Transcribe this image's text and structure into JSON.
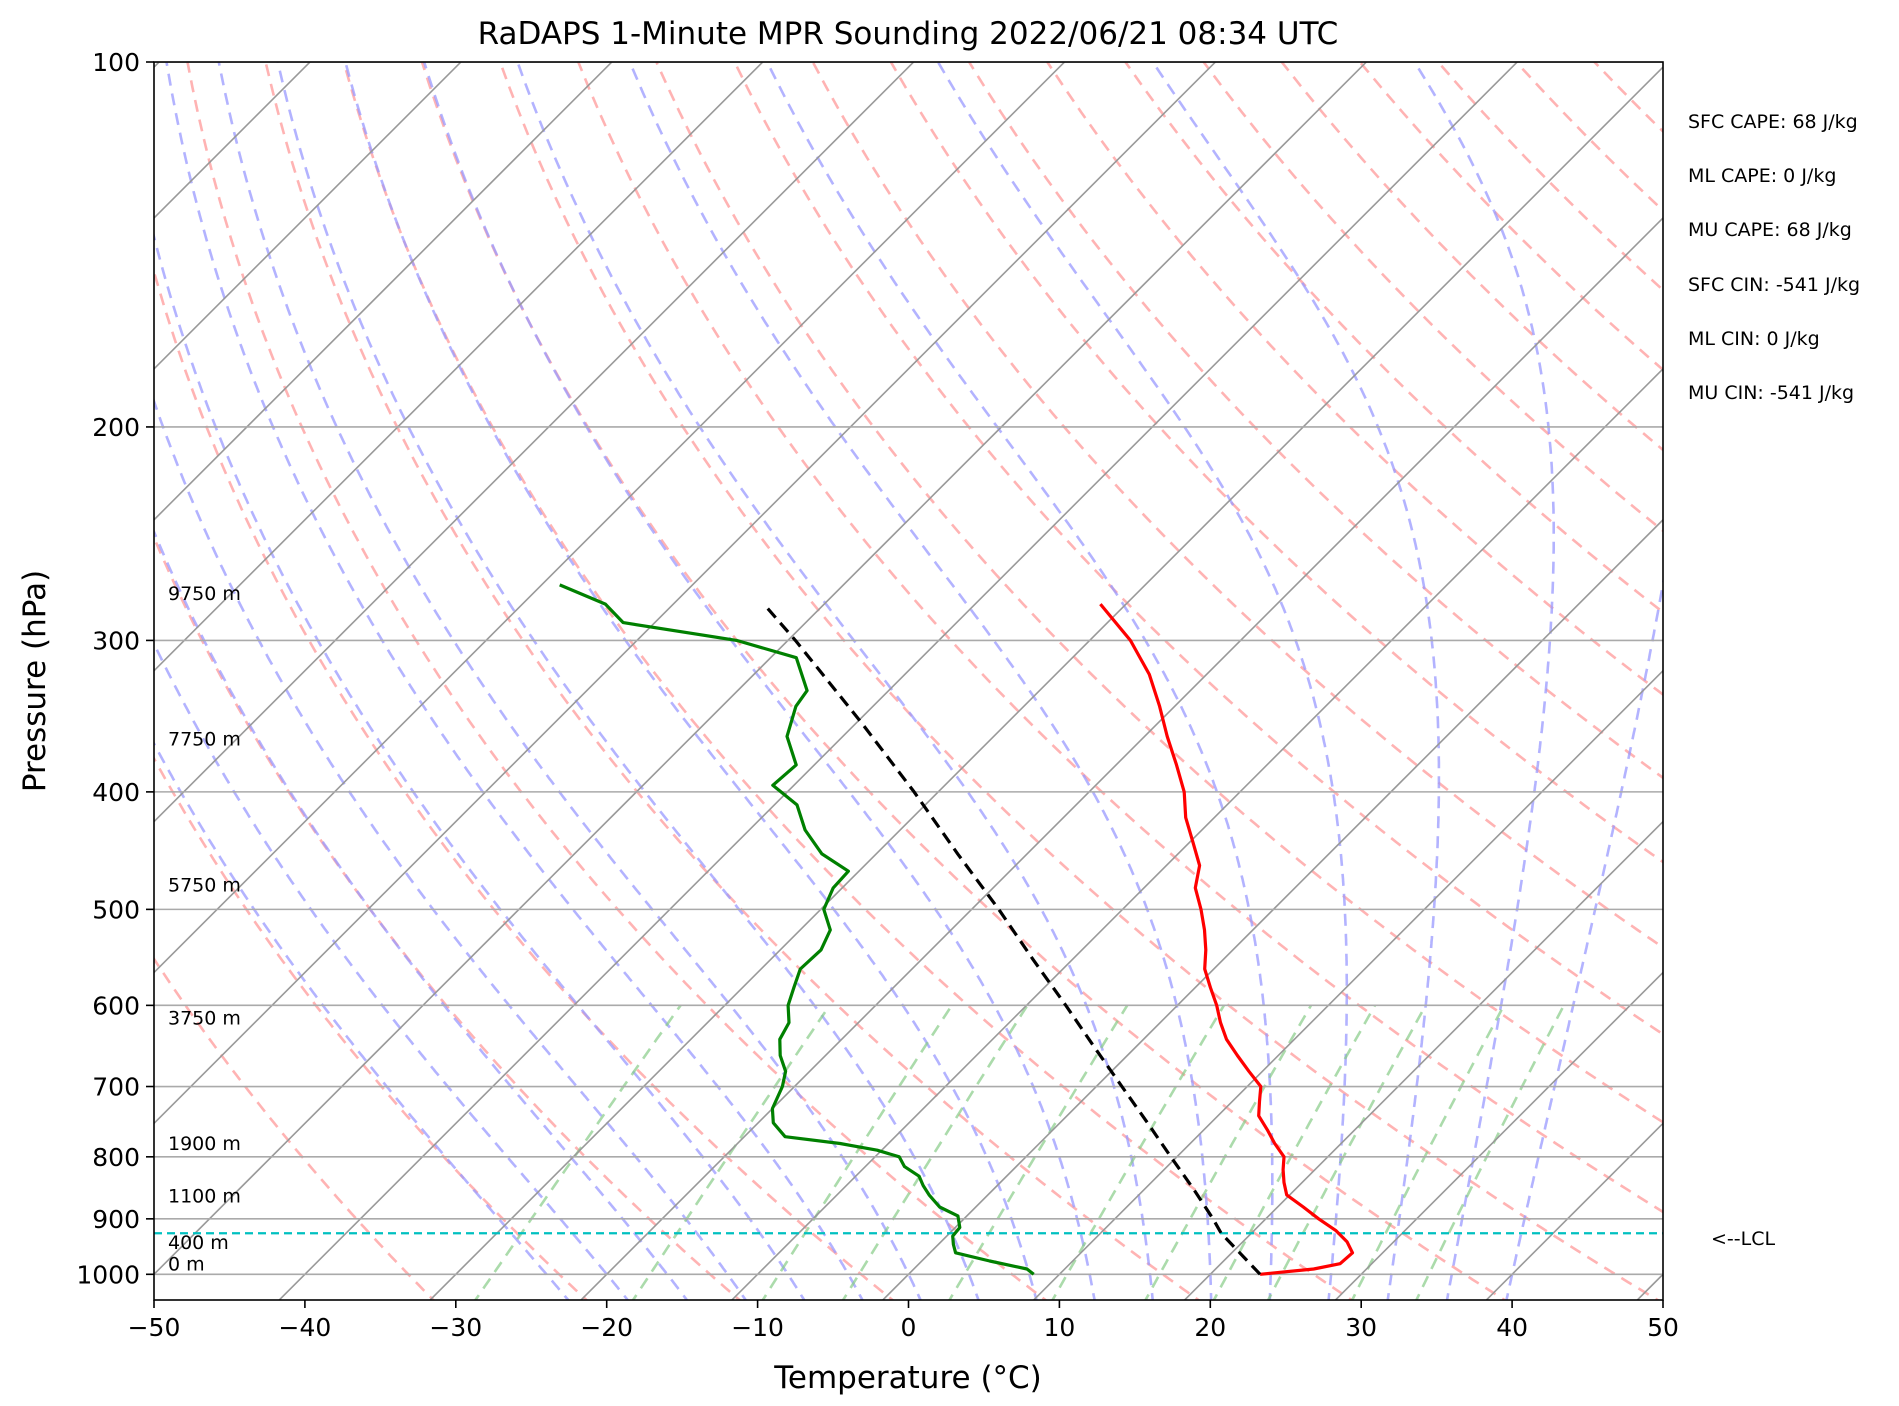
{
  "title": "RaDAPS 1-Minute MPR Sounding 2022/06/21 08:34 UTC",
  "chart_data": {
    "type": "line",
    "title": "RaDAPS 1-Minute MPR Sounding 2022/06/21 08:34 UTC",
    "xlabel": "Temperature (°C)",
    "ylabel": "Pressure (hPa)",
    "xlim": [
      -50,
      50
    ],
    "ylim": [
      1050,
      100
    ],
    "y_scale": "log",
    "skew": "skew-T log-P",
    "grid": true,
    "x_ticks": [
      -50,
      -40,
      -30,
      -20,
      -10,
      0,
      10,
      20,
      30,
      40,
      50
    ],
    "x_tick_labels": [
      "−50",
      "−40",
      "−30",
      "−20",
      "−10",
      "0",
      "10",
      "20",
      "30",
      "40",
      "50"
    ],
    "y_ticks": [
      100,
      200,
      300,
      400,
      500,
      600,
      700,
      800,
      900,
      1000
    ],
    "y_tick_labels": [
      "100",
      "200",
      "300",
      "400",
      "500",
      "600",
      "700",
      "800",
      "900",
      "1000"
    ],
    "series": [
      {
        "kind": "temperature",
        "color": "#ff0000",
        "points": [
          [
            1000,
            23.3
          ],
          [
            990,
            26.5
          ],
          [
            980,
            27.9
          ],
          [
            960,
            28.0
          ],
          [
            940,
            26.9
          ],
          [
            920,
            25.4
          ],
          [
            900,
            23.5
          ],
          [
            880,
            21.7
          ],
          [
            860,
            19.8
          ],
          [
            840,
            18.8
          ],
          [
            820,
            17.9
          ],
          [
            800,
            17.1
          ],
          [
            780,
            15.6
          ],
          [
            760,
            14.2
          ],
          [
            740,
            12.7
          ],
          [
            720,
            11.8
          ],
          [
            700,
            10.9
          ],
          [
            680,
            9.1
          ],
          [
            660,
            7.3
          ],
          [
            640,
            5.5
          ],
          [
            620,
            4.0
          ],
          [
            600,
            2.6
          ],
          [
            580,
            1.0
          ],
          [
            560,
            -0.6
          ],
          [
            540,
            -1.8
          ],
          [
            520,
            -3.2
          ],
          [
            500,
            -4.8
          ],
          [
            480,
            -6.6
          ],
          [
            460,
            -7.8
          ],
          [
            440,
            -9.8
          ],
          [
            420,
            -11.9
          ],
          [
            400,
            -13.7
          ],
          [
            380,
            -16.0
          ],
          [
            360,
            -18.5
          ],
          [
            340,
            -21.0
          ],
          [
            320,
            -23.8
          ],
          [
            300,
            -27.3
          ],
          [
            280,
            -31.7
          ]
        ]
      },
      {
        "kind": "dewpoint",
        "color": "#008000",
        "points": [
          [
            1000,
            8.3
          ],
          [
            990,
            7.5
          ],
          [
            975,
            4.5
          ],
          [
            960,
            1.7
          ],
          [
            945,
            1.0
          ],
          [
            930,
            0.4
          ],
          [
            915,
            0.3
          ],
          [
            895,
            -0.6
          ],
          [
            880,
            -2.4
          ],
          [
            860,
            -3.9
          ],
          [
            845,
            -4.9
          ],
          [
            830,
            -5.8
          ],
          [
            815,
            -7.4
          ],
          [
            800,
            -8.4
          ],
          [
            790,
            -10.3
          ],
          [
            780,
            -13.2
          ],
          [
            770,
            -17.3
          ],
          [
            750,
            -19.0
          ],
          [
            730,
            -20.0
          ],
          [
            700,
            -20.8
          ],
          [
            680,
            -21.6
          ],
          [
            660,
            -23.0
          ],
          [
            640,
            -24.1
          ],
          [
            620,
            -24.6
          ],
          [
            600,
            -25.8
          ],
          [
            580,
            -26.6
          ],
          [
            560,
            -27.4
          ],
          [
            540,
            -27.3
          ],
          [
            520,
            -28.0
          ],
          [
            500,
            -29.8
          ],
          [
            480,
            -30.6
          ],
          [
            465,
            -30.7
          ],
          [
            450,
            -33.6
          ],
          [
            430,
            -36.3
          ],
          [
            410,
            -38.5
          ],
          [
            395,
            -41.4
          ],
          [
            380,
            -41.2
          ],
          [
            360,
            -43.7
          ],
          [
            340,
            -45.1
          ],
          [
            330,
            -45.4
          ],
          [
            310,
            -48.3
          ],
          [
            300,
            -53.4
          ],
          [
            290,
            -62.1
          ],
          [
            280,
            -64.5
          ],
          [
            270,
            -68.8
          ]
        ]
      },
      {
        "kind": "parcel",
        "color": "#000000",
        "dashed": true,
        "points": [
          [
            1000,
            23.3
          ],
          [
            925,
            18.0
          ],
          [
            900,
            16.5
          ],
          [
            850,
            13.2
          ],
          [
            800,
            9.6
          ],
          [
            750,
            5.8
          ],
          [
            700,
            1.7
          ],
          [
            650,
            -2.7
          ],
          [
            600,
            -7.4
          ],
          [
            550,
            -12.6
          ],
          [
            500,
            -18.2
          ],
          [
            450,
            -24.6
          ],
          [
            400,
            -31.6
          ],
          [
            350,
            -39.8
          ],
          [
            300,
            -49.5
          ],
          [
            280,
            -54.0
          ]
        ]
      }
    ],
    "lcl": {
      "pressure": 925,
      "label": "<--LCL",
      "color": "#00c0c0"
    },
    "height_labels": [
      {
        "label": "9750 m",
        "pressure": 280
      },
      {
        "label": "7750 m",
        "pressure": 369
      },
      {
        "label": "5750 m",
        "pressure": 487
      },
      {
        "label": "3750 m",
        "pressure": 627
      },
      {
        "label": "1900 m",
        "pressure": 796
      },
      {
        "label": "1100 m",
        "pressure": 879
      },
      {
        "label": "400 m",
        "pressure": 960
      },
      {
        "label": "0 m",
        "pressure": 1000
      }
    ],
    "reference_lines": {
      "dry_adiabats": {
        "color": "#ff9999",
        "dashed": true
      },
      "moist_adiabats": {
        "color": "#9999ff",
        "dashed": true
      },
      "mixing_ratio": {
        "color": "#88cc88",
        "dashed": true
      },
      "isotherms": {
        "color": "#999999"
      }
    }
  },
  "stats": [
    "SFC CAPE: 68 J/kg",
    "ML CAPE: 0 J/kg",
    "MU CAPE: 68 J/kg",
    "SFC CIN: -541 J/kg",
    "ML CIN: 0 J/kg",
    "MU CIN: -541 J/kg"
  ]
}
